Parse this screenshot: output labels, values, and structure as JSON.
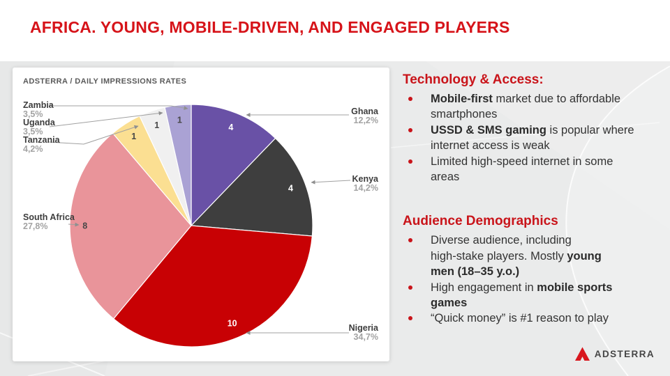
{
  "title": "AFRICA. YOUNG, MOBILE-DRIVEN, AND ENGAGED PLAYERS",
  "colors": {
    "title_red": "#d61319",
    "heading_red": "#c9141a",
    "body_text": "#333333",
    "pct_gray": "#a3a3a3"
  },
  "chart_data": {
    "type": "pie",
    "title": "ADSTERRA / DAILY IMPRESSIONS RATES",
    "legend_position": "outside-callout-labels",
    "start_angle_deg": 0,
    "direction": "clockwise",
    "slices": [
      {
        "label": "Ghana",
        "value": 4,
        "pct": 12.2,
        "pct_label": "12,2%",
        "color": "#6951a6",
        "value_color": "#ffffff"
      },
      {
        "label": "Kenya",
        "value": 4,
        "pct": 14.2,
        "pct_label": "14,2%",
        "color": "#3e3e3e",
        "value_color": "#ffffff"
      },
      {
        "label": "Nigeria",
        "value": 10,
        "pct": 34.7,
        "pct_label": "34,7%",
        "color": "#c80104",
        "value_color": "#ffffff"
      },
      {
        "label": "South Africa",
        "value": 8,
        "pct": 27.8,
        "pct_label": "27,8%",
        "color": "#e9949a",
        "value_color": "#474747"
      },
      {
        "label": "Tanzania",
        "value": 1,
        "pct": 4.2,
        "pct_label": "4,2%",
        "color": "#fbdf92",
        "value_color": "#474747"
      },
      {
        "label": "Uganda",
        "value": 1,
        "pct": 3.5,
        "pct_label": "3,5%",
        "color": "#f0f0f0",
        "value_color": "#474747"
      },
      {
        "label": "Zambia",
        "value": 1,
        "pct": 3.5,
        "pct_label": "3,5%",
        "color": "#aaa2d4",
        "value_color": "#474747"
      }
    ]
  },
  "sections": {
    "technology": {
      "heading": "Technology & Access:",
      "bullets": [
        {
          "segments": [
            {
              "t": "Mobile-first",
              "b": true
            },
            {
              "t": " market due to affordable"
            },
            {
              "br": true
            },
            {
              "t": "smartphones"
            }
          ]
        },
        {
          "segments": [
            {
              "t": "USSD & SMS gaming",
              "b": true
            },
            {
              "t": " is popular where"
            },
            {
              "br": true
            },
            {
              "t": "internet access is weak"
            }
          ]
        },
        {
          "segments": [
            {
              "t": "Limited high-speed internet in some"
            },
            {
              "br": true
            },
            {
              "t": "areas"
            }
          ]
        }
      ]
    },
    "audience": {
      "heading": "Audience Demographics",
      "bullets": [
        {
          "segments": [
            {
              "t": "Diverse audience, including"
            },
            {
              "br": true
            },
            {
              "t": "high-stake players. Mostly "
            },
            {
              "t": "young",
              "b": true
            },
            {
              "br": true
            },
            {
              "t": "men (18–35 y.o.)",
              "b": true
            }
          ]
        },
        {
          "segments": [
            {
              "t": "High engagement in "
            },
            {
              "t": "mobile sports",
              "b": true
            },
            {
              "br": true
            },
            {
              "t": "games",
              "b": true
            }
          ]
        },
        {
          "segments": [
            {
              "t": "“Quick money” is #1 reason to play"
            }
          ]
        }
      ]
    }
  },
  "logo": {
    "text": "ADSTERRA"
  }
}
